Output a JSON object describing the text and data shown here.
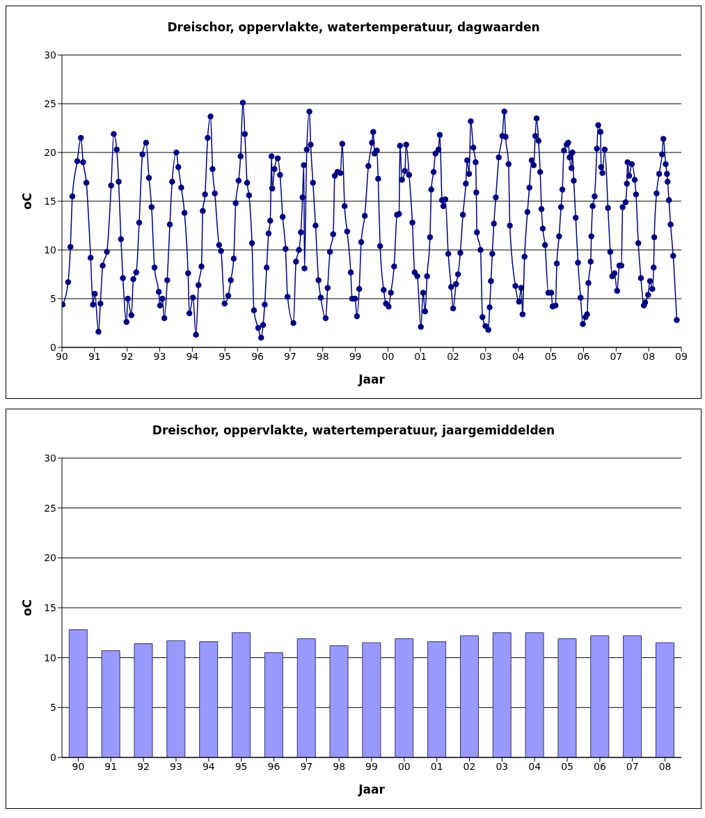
{
  "chart_data": [
    {
      "type": "line",
      "title": "Dreischor, oppervlakte, watertemperatuur, dagwaarden",
      "xlabel": "Jaar",
      "ylabel": "oC",
      "color": "#000080",
      "marker": "circle",
      "grid": "y",
      "xlim": [
        1990,
        2009
      ],
      "xticks": [
        {
          "value": 1990,
          "label": "90"
        },
        {
          "value": 1991,
          "label": "91"
        },
        {
          "value": 1992,
          "label": "92"
        },
        {
          "value": 1993,
          "label": "93"
        },
        {
          "value": 1994,
          "label": "94"
        },
        {
          "value": 1995,
          "label": "95"
        },
        {
          "value": 1996,
          "label": "96"
        },
        {
          "value": 1997,
          "label": "97"
        },
        {
          "value": 1998,
          "label": "98"
        },
        {
          "value": 1999,
          "label": "99"
        },
        {
          "value": 2000,
          "label": "00"
        },
        {
          "value": 2001,
          "label": "01"
        },
        {
          "value": 2002,
          "label": "02"
        },
        {
          "value": 2003,
          "label": "03"
        },
        {
          "value": 2004,
          "label": "04"
        },
        {
          "value": 2005,
          "label": "05"
        },
        {
          "value": 2006,
          "label": "06"
        },
        {
          "value": 2007,
          "label": "07"
        },
        {
          "value": 2008,
          "label": "08"
        },
        {
          "value": 2009,
          "label": "09"
        }
      ],
      "ylim": [
        0,
        30
      ],
      "yticks": [
        0,
        5,
        10,
        15,
        20,
        25,
        30
      ],
      "x": [
        1990.02,
        1990.19,
        1990.26,
        1990.32,
        1990.47,
        1990.58,
        1990.65,
        1990.75,
        1990.88,
        1990.95,
        1991.01,
        1991.12,
        1991.18,
        1991.25,
        1991.38,
        1991.51,
        1991.59,
        1991.68,
        1991.74,
        1991.81,
        1991.87,
        1991.98,
        1992.02,
        1992.13,
        1992.19,
        1992.28,
        1992.37,
        1992.47,
        1992.58,
        1992.67,
        1992.75,
        1992.84,
        1992.97,
        1993.01,
        1993.08,
        1993.14,
        1993.23,
        1993.31,
        1993.38,
        1993.51,
        1993.57,
        1993.66,
        1993.76,
        1993.87,
        1993.91,
        1994.02,
        1994.11,
        1994.19,
        1994.28,
        1994.32,
        1994.39,
        1994.47,
        1994.56,
        1994.62,
        1994.69,
        1994.82,
        1994.88,
        1994.99,
        1995.1,
        1995.18,
        1995.27,
        1995.33,
        1995.42,
        1995.48,
        1995.55,
        1995.61,
        1995.68,
        1995.74,
        1995.83,
        1995.89,
        1996.02,
        1996.11,
        1996.17,
        1996.22,
        1996.28,
        1996.34,
        1996.39,
        1996.43,
        1996.45,
        1996.52,
        1996.62,
        1996.69,
        1996.77,
        1996.86,
        1996.92,
        1997.1,
        1997.18,
        1997.27,
        1997.33,
        1997.38,
        1997.42,
        1997.44,
        1997.51,
        1997.59,
        1997.63,
        1997.7,
        1997.78,
        1997.87,
        1997.94,
        1998.09,
        1998.15,
        1998.22,
        1998.32,
        1998.37,
        1998.45,
        1998.54,
        1998.6,
        1998.67,
        1998.75,
        1998.86,
        1998.9,
        1998.99,
        1999.05,
        1999.12,
        1999.18,
        1999.29,
        1999.4,
        1999.51,
        1999.55,
        1999.59,
        1999.66,
        1999.7,
        1999.76,
        1999.87,
        1999.94,
        2000.02,
        2000.09,
        2000.19,
        2000.28,
        2000.34,
        2000.37,
        2000.43,
        2000.52,
        2000.56,
        2000.65,
        2000.75,
        2000.82,
        2000.9,
        2001.01,
        2001.08,
        2001.14,
        2001.2,
        2001.29,
        2001.33,
        2001.4,
        2001.46,
        2001.55,
        2001.59,
        2001.66,
        2001.7,
        2001.76,
        2001.85,
        2001.94,
        2002.0,
        2002.09,
        2002.15,
        2002.22,
        2002.3,
        2002.39,
        2002.43,
        2002.49,
        2002.54,
        2002.62,
        2002.69,
        2002.71,
        2002.73,
        2002.84,
        2002.9,
        2002.99,
        2003.08,
        2003.12,
        2003.16,
        2003.2,
        2003.25,
        2003.31,
        2003.4,
        2003.51,
        2003.57,
        2003.61,
        2003.7,
        2003.74,
        2003.91,
        2004.02,
        2004.09,
        2004.13,
        2004.19,
        2004.28,
        2004.34,
        2004.41,
        2004.47,
        2004.52,
        2004.56,
        2004.62,
        2004.67,
        2004.71,
        2004.75,
        2004.82,
        2004.92,
        2005.01,
        2005.05,
        2005.14,
        2005.18,
        2005.25,
        2005.31,
        2005.35,
        2005.4,
        2005.48,
        2005.53,
        2005.57,
        2005.63,
        2005.66,
        2005.7,
        2005.76,
        2005.83,
        2005.91,
        2005.98,
        2006.06,
        2006.11,
        2006.15,
        2006.22,
        2006.24,
        2006.28,
        2006.34,
        2006.41,
        2006.45,
        2006.52,
        2006.54,
        2006.58,
        2006.65,
        2006.75,
        2006.82,
        2006.88,
        2006.95,
        2007.03,
        2007.1,
        2007.16,
        2007.2,
        2007.29,
        2007.33,
        2007.35,
        2007.4,
        2007.48,
        2007.57,
        2007.61,
        2007.68,
        2007.76,
        2007.85,
        2007.89,
        2007.98,
        2008.04,
        2008.11,
        2008.15,
        2008.17,
        2008.24,
        2008.32,
        2008.41,
        2008.45,
        2008.52,
        2008.56,
        2008.58,
        2008.62,
        2008.67,
        2008.75,
        2008.86
      ],
      "values": [
        4.4,
        6.7,
        10.3,
        15.5,
        19.1,
        21.5,
        19.0,
        16.9,
        9.2,
        4.4,
        5.5,
        1.6,
        4.5,
        8.4,
        9.8,
        16.6,
        21.9,
        20.3,
        17.0,
        11.1,
        7.1,
        2.6,
        5.0,
        3.3,
        7.0,
        7.7,
        12.8,
        19.8,
        21.0,
        17.4,
        14.4,
        8.2,
        5.7,
        4.3,
        5.0,
        3.0,
        6.9,
        12.6,
        17.0,
        20.0,
        18.5,
        16.4,
        13.8,
        7.6,
        3.5,
        5.1,
        1.3,
        6.4,
        8.3,
        14.0,
        15.7,
        21.5,
        23.7,
        18.3,
        15.8,
        10.5,
        9.9,
        4.5,
        5.3,
        6.9,
        9.1,
        14.8,
        17.1,
        19.6,
        25.1,
        21.9,
        16.9,
        15.6,
        10.7,
        3.8,
        2.0,
        1.0,
        2.3,
        4.4,
        8.2,
        11.7,
        13.0,
        19.6,
        16.3,
        18.3,
        19.4,
        17.7,
        13.4,
        10.1,
        5.2,
        2.5,
        8.8,
        10.0,
        11.8,
        15.4,
        18.7,
        8.1,
        20.3,
        24.2,
        20.8,
        16.9,
        12.5,
        6.9,
        5.1,
        3.0,
        6.1,
        9.8,
        11.6,
        17.6,
        18.0,
        17.9,
        20.9,
        14.5,
        11.9,
        7.7,
        5.0,
        5.0,
        3.2,
        6.0,
        10.8,
        13.5,
        18.6,
        21.0,
        22.1,
        19.9,
        20.2,
        17.3,
        10.4,
        5.9,
        4.5,
        4.2,
        5.6,
        8.3,
        13.6,
        13.7,
        20.7,
        17.2,
        18.1,
        20.8,
        17.7,
        12.8,
        7.7,
        7.3,
        2.1,
        5.6,
        3.7,
        7.3,
        11.3,
        16.2,
        18.0,
        19.9,
        20.3,
        21.8,
        15.1,
        14.5,
        15.2,
        9.6,
        6.2,
        4.0,
        6.5,
        7.5,
        9.7,
        13.6,
        16.8,
        19.2,
        17.8,
        23.2,
        20.5,
        19.0,
        15.9,
        11.8,
        10.0,
        3.1,
        2.2,
        1.8,
        4.1,
        6.8,
        9.6,
        12.7,
        15.4,
        19.5,
        21.7,
        24.2,
        21.6,
        18.8,
        12.5,
        6.3,
        4.7,
        6.1,
        3.4,
        9.3,
        13.9,
        16.4,
        19.2,
        18.7,
        21.7,
        23.5,
        21.2,
        18.0,
        14.2,
        12.2,
        10.5,
        5.6,
        5.6,
        4.2,
        4.3,
        8.6,
        11.4,
        14.4,
        16.2,
        20.2,
        20.8,
        21.0,
        19.5,
        18.4,
        20.0,
        17.1,
        13.3,
        8.7,
        5.1,
        2.4,
        3.1,
        3.4,
        6.6,
        8.8,
        11.4,
        14.5,
        15.5,
        20.4,
        22.8,
        22.1,
        18.5,
        17.9,
        20.3,
        14.3,
        9.8,
        7.3,
        7.6,
        5.8,
        8.4,
        8.4,
        14.4,
        14.9,
        16.8,
        19.0,
        17.6,
        18.8,
        17.2,
        15.7,
        10.7,
        7.1,
        4.3,
        4.6,
        5.4,
        6.8,
        6.0,
        8.2,
        11.3,
        15.8,
        17.8,
        19.8,
        21.4,
        18.8,
        17.8,
        17.0,
        15.1,
        12.6,
        9.4,
        2.8
      ]
    },
    {
      "type": "bar",
      "title": "Dreischor, oppervlakte, watertemperatuur, jaargemiddelden",
      "xlabel": "Jaar",
      "ylabel": "oC",
      "color": "#9999ff",
      "grid": "y",
      "categories": [
        "90",
        "91",
        "92",
        "93",
        "94",
        "95",
        "96",
        "97",
        "98",
        "99",
        "00",
        "01",
        "02",
        "03",
        "04",
        "05",
        "06",
        "07",
        "08"
      ],
      "values": [
        12.8,
        10.7,
        11.4,
        11.7,
        11.6,
        12.5,
        10.5,
        11.9,
        11.2,
        11.5,
        11.9,
        11.6,
        12.2,
        12.5,
        12.5,
        11.9,
        12.2,
        12.2,
        11.5
      ],
      "ylim": [
        0,
        30
      ],
      "yticks": [
        0,
        5,
        10,
        15,
        20,
        25,
        30
      ]
    }
  ]
}
